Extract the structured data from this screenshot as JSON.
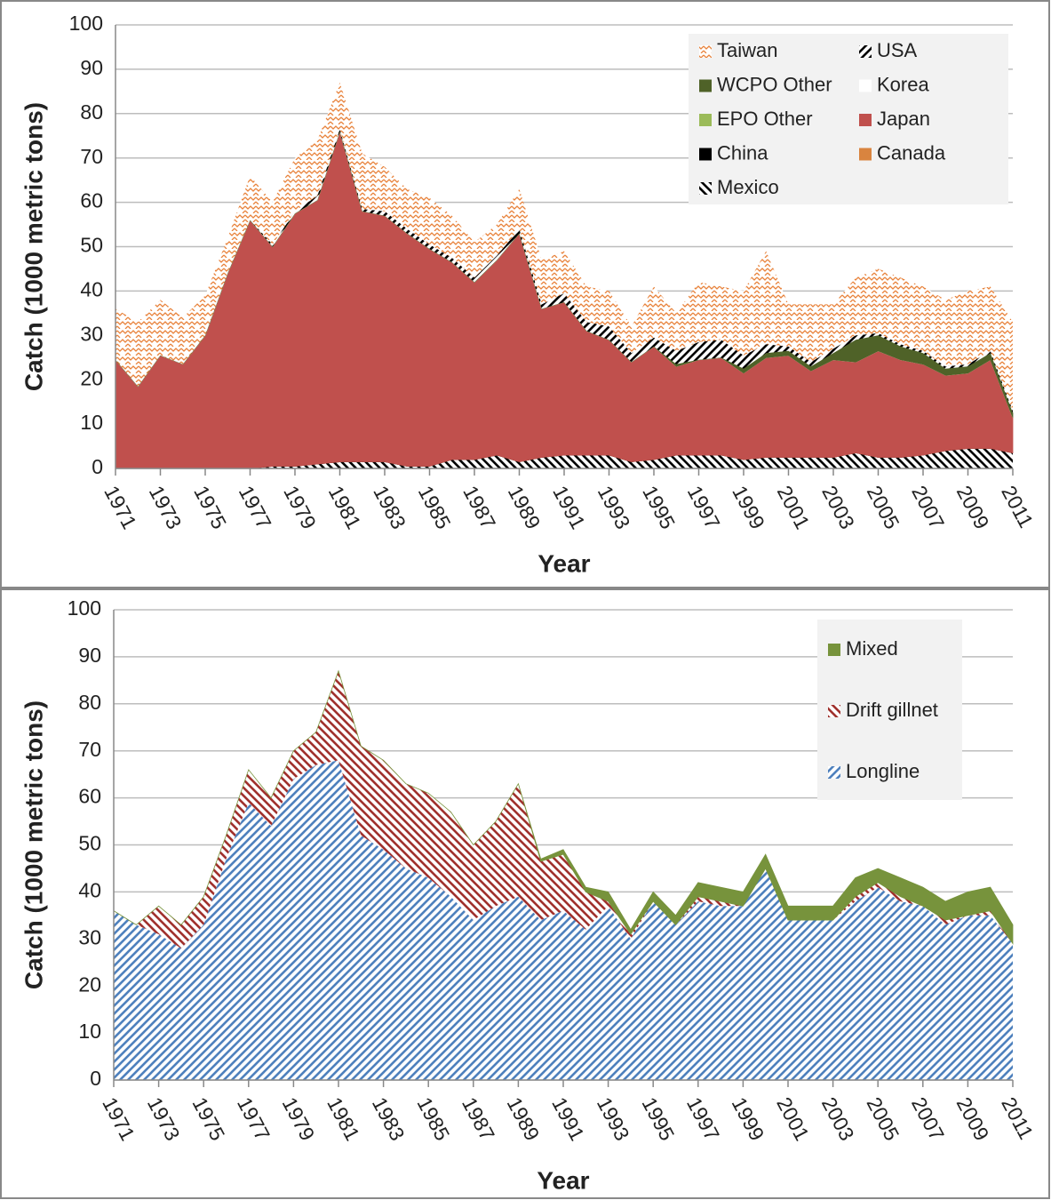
{
  "chart_data": [
    {
      "type": "stacked-area",
      "x_label": "Year",
      "y_label": "Catch (1000 metric tons)",
      "x": [
        1971,
        1972,
        1973,
        1974,
        1975,
        1976,
        1977,
        1978,
        1979,
        1980,
        1981,
        1982,
        1983,
        1984,
        1985,
        1986,
        1987,
        1988,
        1989,
        1990,
        1991,
        1992,
        1993,
        1994,
        1995,
        1996,
        1997,
        1998,
        1999,
        2000,
        2001,
        2002,
        2003,
        2004,
        2005,
        2006,
        2007,
        2008,
        2009,
        2010,
        2011
      ],
      "xlim": [
        1971,
        2011
      ],
      "xticks": [
        1971,
        1973,
        1975,
        1977,
        1979,
        1981,
        1983,
        1985,
        1987,
        1989,
        1991,
        1993,
        1995,
        1997,
        1999,
        2001,
        2003,
        2005,
        2007,
        2009,
        2011
      ],
      "ylim": [
        0,
        100
      ],
      "yticks": [
        0,
        10,
        20,
        30,
        40,
        50,
        60,
        70,
        80,
        90,
        100
      ],
      "grid": true,
      "legend_columns": 2,
      "series": [
        {
          "name": "Mexico",
          "color": "#000000",
          "pattern": "back-diagonal",
          "values": [
            0,
            0,
            0,
            0,
            0,
            0,
            0,
            0.5,
            0.5,
            1,
            1.5,
            1.5,
            1.5,
            0.5,
            0.5,
            2,
            2,
            3,
            1.5,
            2.5,
            3,
            3,
            3,
            1.5,
            2,
            3,
            3,
            3,
            2,
            2.5,
            2.5,
            2.5,
            2.5,
            3.5,
            2.5,
            2.5,
            3,
            4,
            4.5,
            4.5,
            3.5
          ]
        },
        {
          "name": "Canada",
          "color": "#d9843f",
          "pattern": "solid",
          "values": [
            0,
            0,
            0,
            0,
            0,
            0,
            0,
            0,
            0,
            0,
            0,
            0,
            0,
            0,
            0,
            0,
            0,
            0,
            0,
            0,
            0,
            0,
            0,
            0,
            0,
            0,
            0,
            0,
            0,
            0,
            0,
            0,
            0,
            0,
            0,
            0,
            0,
            0,
            0,
            0,
            0
          ]
        },
        {
          "name": "China",
          "color": "#000000",
          "pattern": "solid",
          "values": [
            0,
            0,
            0,
            0,
            0,
            0,
            0,
            0,
            0,
            0,
            0,
            0,
            0,
            0,
            0,
            0,
            0,
            0,
            0,
            0,
            0,
            0,
            0,
            0,
            0,
            0,
            0,
            0,
            0,
            0,
            0,
            0,
            0,
            0,
            0,
            0,
            0,
            0,
            0,
            0,
            0
          ]
        },
        {
          "name": "Japan",
          "color": "#c0504d",
          "pattern": "solid",
          "values": [
            24.5,
            18.5,
            25.5,
            23.5,
            30,
            44,
            56,
            49.5,
            57,
            59.5,
            74.5,
            56.5,
            55.5,
            52.5,
            49,
            44.5,
            40,
            44,
            51.5,
            33.5,
            34.5,
            28,
            26,
            22.5,
            25.5,
            20,
            21.5,
            22,
            19.5,
            22.5,
            23,
            19.5,
            22,
            20.5,
            24,
            22,
            20.5,
            17,
            17,
            20,
            8
          ]
        },
        {
          "name": "EPO Other",
          "color": "#9bbb59",
          "pattern": "solid",
          "values": [
            0,
            0,
            0,
            0,
            0,
            0,
            0,
            0,
            0,
            0,
            0,
            0,
            0,
            0,
            0,
            0,
            0,
            0,
            0,
            0,
            0,
            0,
            0,
            0,
            0,
            0,
            0,
            0,
            0,
            0,
            0,
            0,
            0,
            0,
            0,
            0,
            0,
            0,
            0,
            0,
            0
          ]
        },
        {
          "name": "Korea",
          "color": "#ffffff",
          "pattern": "solid",
          "values": [
            0,
            0,
            0,
            0,
            0,
            0,
            0,
            0,
            0,
            0,
            0,
            0,
            0,
            0,
            0,
            0,
            0,
            0,
            0,
            0,
            0,
            0,
            0,
            0,
            0,
            0,
            0,
            0,
            0,
            0,
            0,
            0,
            0,
            0,
            0,
            0,
            0,
            0,
            0,
            0,
            0
          ]
        },
        {
          "name": "WCPO Other",
          "color": "#4f6228",
          "pattern": "solid",
          "values": [
            0,
            0,
            0,
            0,
            0,
            0,
            0,
            0,
            0,
            0,
            0,
            0,
            0,
            0,
            0,
            0,
            0,
            0,
            0,
            0,
            0,
            0,
            0,
            0,
            0,
            0.5,
            0,
            0,
            1,
            1,
            1,
            1,
            1.5,
            5,
            3.5,
            3,
            2.5,
            1.5,
            1.5,
            1.5,
            1
          ]
        },
        {
          "name": "USA",
          "color": "#000000",
          "pattern": "diagonal",
          "values": [
            0,
            0,
            0,
            0,
            0,
            0,
            0,
            0.5,
            0.5,
            1,
            0.5,
            0.5,
            1,
            1,
            1,
            1,
            1,
            1,
            1,
            1,
            2,
            2,
            3,
            2,
            2,
            3,
            4,
            4,
            3,
            2,
            1,
            1,
            1,
            1,
            0.5,
            0.5,
            0.5,
            0.5,
            0.5,
            0.5,
            0.5
          ]
        },
        {
          "name": "Taiwan",
          "color": "#e8823a",
          "pattern": "zigzag",
          "values": [
            11.5,
            14.5,
            12.5,
            10.5,
            9,
            8,
            10,
            9.5,
            12,
            12.5,
            10.5,
            12.5,
            10,
            9,
            10.5,
            9.5,
            8,
            7,
            9,
            10,
            9.5,
            8,
            8,
            6,
            11.5,
            8.5,
            13.5,
            12,
            14.5,
            21,
            9.5,
            13,
            10,
            13,
            14.5,
            15,
            14.5,
            15,
            16.5,
            14.5,
            20
          ]
        }
      ]
    },
    {
      "type": "stacked-area",
      "x_label": "Year",
      "y_label": "Catch (1000 metric tons)",
      "x": [
        1971,
        1972,
        1973,
        1974,
        1975,
        1976,
        1977,
        1978,
        1979,
        1980,
        1981,
        1982,
        1983,
        1984,
        1985,
        1986,
        1987,
        1988,
        1989,
        1990,
        1991,
        1992,
        1993,
        1994,
        1995,
        1996,
        1997,
        1998,
        1999,
        2000,
        2001,
        2002,
        2003,
        2004,
        2005,
        2006,
        2007,
        2008,
        2009,
        2010,
        2011
      ],
      "xlim": [
        1971,
        2011
      ],
      "xticks": [
        1971,
        1973,
        1975,
        1977,
        1979,
        1981,
        1983,
        1985,
        1987,
        1989,
        1991,
        1993,
        1995,
        1997,
        1999,
        2001,
        2003,
        2005,
        2007,
        2009,
        2011
      ],
      "ylim": [
        0,
        100
      ],
      "yticks": [
        0,
        10,
        20,
        30,
        40,
        50,
        60,
        70,
        80,
        90,
        100
      ],
      "grid": true,
      "legend_columns": 1,
      "series": [
        {
          "name": "Longline",
          "color": "#4f81bd",
          "pattern": "diagonal",
          "values": [
            36,
            33,
            31,
            28,
            33,
            47,
            59,
            54,
            64,
            67,
            68,
            52,
            49,
            45,
            43,
            39,
            34,
            37,
            39,
            34,
            36,
            32,
            37,
            30,
            38,
            33,
            38,
            37,
            37,
            45,
            34,
            34,
            34,
            38,
            41,
            38,
            37,
            33,
            35,
            35,
            29
          ]
        },
        {
          "name": "Drift gillnet",
          "color": "#a0312d",
          "pattern": "back-diagonal",
          "values": [
            0,
            0,
            6,
            5,
            6,
            5,
            7,
            6,
            6,
            7,
            19,
            19,
            19,
            18,
            18,
            18,
            16,
            18,
            24,
            12.5,
            12,
            8,
            1,
            1,
            0,
            0,
            1,
            1,
            0,
            0,
            0,
            0,
            0,
            1,
            1,
            1,
            0,
            1,
            0,
            1,
            0
          ]
        },
        {
          "name": "Mixed",
          "color": "#77933c",
          "pattern": "solid",
          "values": [
            0,
            0,
            0,
            0,
            0,
            0,
            0,
            0,
            0,
            0,
            0,
            0,
            0,
            0,
            0,
            0,
            0,
            0,
            0,
            0.5,
            1,
            1,
            2,
            1,
            2,
            2,
            3,
            3,
            3,
            3,
            3,
            3,
            3,
            4,
            3,
            4,
            4,
            4,
            5,
            5,
            4
          ]
        }
      ]
    }
  ]
}
